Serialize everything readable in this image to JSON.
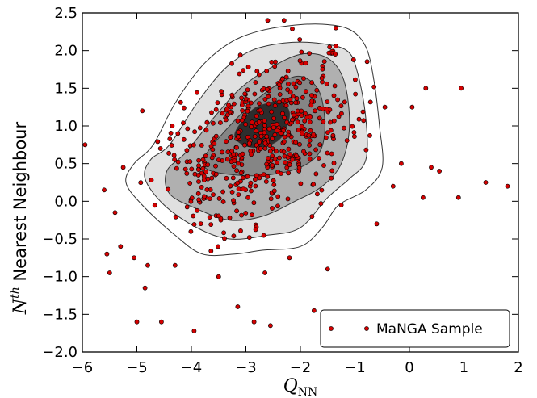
{
  "chart_data": {
    "type": "scatter",
    "xlabel_main": "Q",
    "xlabel_sub": "NN",
    "ylabel_super": "th",
    "ylabel_main": "N",
    "ylabel_rest": " Nearest Neighbour",
    "xlim": [
      -6,
      2
    ],
    "ylim": [
      -2.0,
      2.5
    ],
    "grid": false,
    "legend_position": "bottom-right",
    "x_ticks": [
      {
        "value": -6,
        "label": "−6"
      },
      {
        "value": -5,
        "label": "−5"
      },
      {
        "value": -4,
        "label": "−4"
      },
      {
        "value": -3,
        "label": "−3"
      },
      {
        "value": -2,
        "label": "−2"
      },
      {
        "value": -1,
        "label": "−1"
      },
      {
        "value": 0,
        "label": "0"
      },
      {
        "value": 1,
        "label": "1"
      },
      {
        "value": 2,
        "label": "2"
      }
    ],
    "y_ticks": [
      {
        "value": -2.0,
        "label": "−2.0"
      },
      {
        "value": -1.5,
        "label": "−1.5"
      },
      {
        "value": -1.0,
        "label": "−1.0"
      },
      {
        "value": -0.5,
        "label": "−0.5"
      },
      {
        "value": 0.0,
        "label": "0.0"
      },
      {
        "value": 0.5,
        "label": "0.5"
      },
      {
        "value": 1.0,
        "label": "1.0"
      },
      {
        "value": 1.5,
        "label": "1.5"
      },
      {
        "value": 2.0,
        "label": "2.0"
      },
      {
        "value": 2.5,
        "label": "2.5"
      }
    ],
    "contours": [
      {
        "level": 1,
        "fill": "#ffffff",
        "points": [
          [
            -4.7,
            0.75
          ],
          [
            -4.3,
            1.3
          ],
          [
            -3.8,
            1.8
          ],
          [
            -3.3,
            2.1
          ],
          [
            -2.8,
            2.25
          ],
          [
            -2.2,
            2.33
          ],
          [
            -1.6,
            2.35
          ],
          [
            -1.1,
            2.28
          ],
          [
            -0.8,
            2.05
          ],
          [
            -0.65,
            1.6
          ],
          [
            -0.55,
            1.0
          ],
          [
            -0.5,
            0.45
          ],
          [
            -0.8,
            0.15
          ],
          [
            -1.3,
            -0.05
          ],
          [
            -1.6,
            -0.35
          ],
          [
            -2.0,
            -0.6
          ],
          [
            -2.7,
            -0.65
          ],
          [
            -3.2,
            -0.7
          ],
          [
            -3.8,
            -0.7
          ],
          [
            -4.3,
            -0.45
          ],
          [
            -4.9,
            -0.05
          ],
          [
            -5.2,
            0.25
          ],
          [
            -5.05,
            0.5
          ]
        ]
      },
      {
        "level": 2,
        "fill": "#e0e0e0",
        "points": [
          [
            -4.4,
            0.75
          ],
          [
            -3.9,
            1.3
          ],
          [
            -3.4,
            1.75
          ],
          [
            -2.9,
            2.0
          ],
          [
            -2.3,
            2.1
          ],
          [
            -1.7,
            2.1
          ],
          [
            -1.15,
            2.0
          ],
          [
            -0.95,
            1.7
          ],
          [
            -0.8,
            1.1
          ],
          [
            -0.8,
            0.55
          ],
          [
            -1.1,
            0.3
          ],
          [
            -1.5,
            0.05
          ],
          [
            -2.0,
            -0.35
          ],
          [
            -2.6,
            -0.45
          ],
          [
            -3.3,
            -0.5
          ],
          [
            -3.9,
            -0.35
          ],
          [
            -4.5,
            -0.05
          ],
          [
            -4.85,
            0.3
          ],
          [
            -4.75,
            0.55
          ]
        ]
      },
      {
        "level": 3,
        "fill": "#b0b0b0",
        "points": [
          [
            -4.1,
            0.65
          ],
          [
            -3.6,
            1.1
          ],
          [
            -3.1,
            1.5
          ],
          [
            -2.6,
            1.75
          ],
          [
            -2.0,
            1.95
          ],
          [
            -1.5,
            1.9
          ],
          [
            -1.2,
            1.6
          ],
          [
            -1.1,
            1.0
          ],
          [
            -1.25,
            0.5
          ],
          [
            -1.6,
            0.2
          ],
          [
            -2.1,
            0.0
          ],
          [
            -2.7,
            -0.2
          ],
          [
            -3.3,
            -0.25
          ],
          [
            -3.9,
            -0.1
          ],
          [
            -4.4,
            0.1
          ],
          [
            -4.45,
            0.4
          ]
        ]
      },
      {
        "level": 4,
        "fill": "#858585",
        "points": [
          [
            -3.75,
            0.6
          ],
          [
            -3.3,
            1.0
          ],
          [
            -2.8,
            1.35
          ],
          [
            -2.3,
            1.6
          ],
          [
            -1.95,
            1.65
          ],
          [
            -1.65,
            1.45
          ],
          [
            -1.55,
            1.0
          ],
          [
            -1.65,
            0.65
          ],
          [
            -2.0,
            0.45
          ],
          [
            -2.6,
            0.35
          ],
          [
            -3.2,
            0.35
          ],
          [
            -3.7,
            0.42
          ]
        ]
      },
      {
        "level": 5,
        "fill": "#2d2d2d",
        "points": [
          [
            -3.2,
            0.9
          ],
          [
            -2.9,
            1.2
          ],
          [
            -2.6,
            1.3
          ],
          [
            -2.35,
            1.32
          ],
          [
            -2.2,
            1.15
          ],
          [
            -2.35,
            0.85
          ],
          [
            -2.7,
            0.72
          ],
          [
            -3.05,
            0.75
          ]
        ]
      }
    ],
    "series": [
      {
        "name": "MaNGA Sample",
        "color": "#d40000"
      }
    ]
  }
}
